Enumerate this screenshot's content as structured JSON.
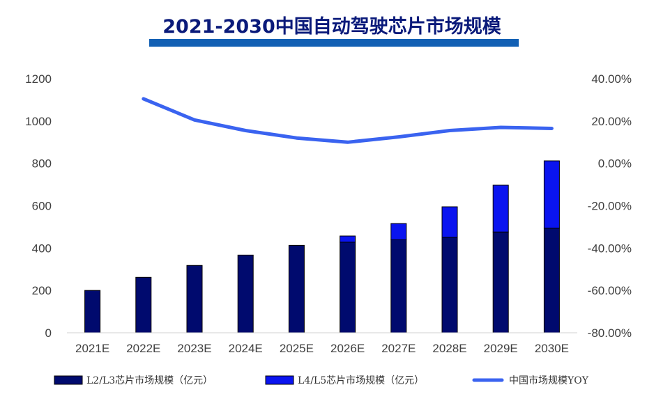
{
  "chart_data": {
    "type": "bar",
    "title": "2021-2030中国自动驾驶芯片市场规模",
    "categories": [
      "2021E",
      "2022E",
      "2023E",
      "2024E",
      "2025E",
      "2026E",
      "2027E",
      "2028E",
      "2029E",
      "2030E"
    ],
    "series": [
      {
        "name": "L2/L3芯片市场规模（亿元）",
        "type": "stacked-bar",
        "axis": "left",
        "color": "#000a6e",
        "values": [
          200,
          262,
          318,
          367,
          413,
          428,
          439,
          451,
          476,
          494
        ]
      },
      {
        "name": "L4/L5芯片市场规模（亿元）",
        "type": "stacked-bar",
        "axis": "left",
        "color": "#0a14f0",
        "values": [
          0,
          0,
          0,
          0,
          0,
          29,
          77,
          144,
          221,
          318
        ]
      },
      {
        "name": "中国市场规模YOY",
        "type": "line",
        "axis": "right",
        "color": "#3a63f0",
        "values": [
          null,
          30.5,
          20.5,
          15.5,
          12.0,
          10.0,
          12.5,
          15.5,
          17.0,
          16.5
        ]
      }
    ],
    "left_axis": {
      "ylim": [
        0,
        1200
      ],
      "ticks": [
        "0",
        "200",
        "400",
        "600",
        "800",
        "1000",
        "1200"
      ]
    },
    "right_axis": {
      "ylim": [
        -80,
        40
      ],
      "ticks": [
        "-80.00%",
        "-60.00%",
        "-40.00%",
        "-20.00%",
        "0.00%",
        "20.00%",
        "40.00%"
      ]
    },
    "legend_position": "bottom",
    "grid": false,
    "title_underline_color": "#1260b4"
  }
}
